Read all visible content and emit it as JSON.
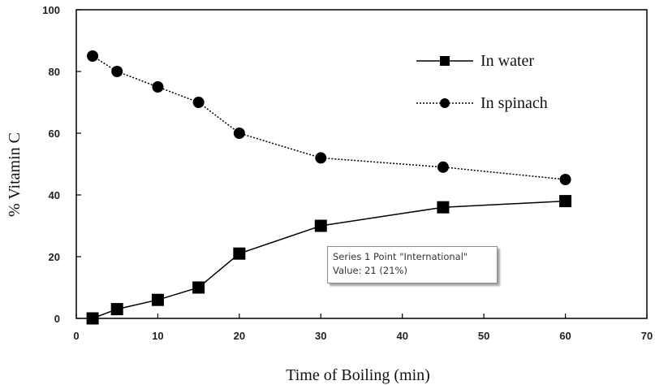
{
  "chart_data": {
    "type": "line",
    "title": "",
    "xlabel": "Time of Boiling (min)",
    "ylabel": "% Vitamin C",
    "xlim": [
      0,
      70
    ],
    "ylim": [
      0,
      100
    ],
    "xticks": [
      0,
      10,
      20,
      30,
      40,
      50,
      60,
      70
    ],
    "yticks": [
      0,
      20,
      40,
      60,
      80,
      100
    ],
    "grid": false,
    "legend_position": "top-right",
    "series": [
      {
        "name": "In water",
        "marker": "square",
        "line_style": "solid",
        "color": "#000000",
        "x": [
          2,
          5,
          10,
          15,
          20,
          30,
          45,
          60
        ],
        "y": [
          0,
          3,
          6,
          10,
          21,
          30,
          36,
          38
        ]
      },
      {
        "name": "In spinach",
        "marker": "circle",
        "line_style": "dotted",
        "color": "#000000",
        "x": [
          2,
          5,
          10,
          15,
          20,
          30,
          45,
          60
        ],
        "y": [
          85,
          80,
          75,
          70,
          60,
          52,
          49,
          45
        ]
      }
    ]
  },
  "tooltip": {
    "line1": "Series 1 Point \"International\"",
    "line2": "Value: 21 (21%)"
  }
}
